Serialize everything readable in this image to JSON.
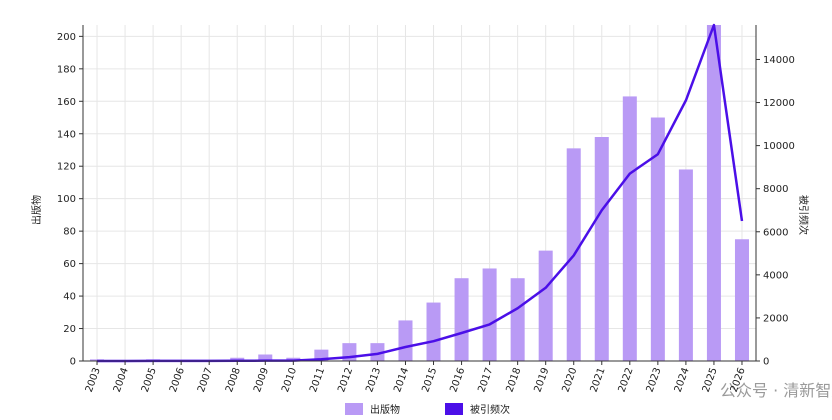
{
  "chart_data": {
    "type": "bar_line",
    "categories": [
      "2003",
      "2004",
      "2005",
      "2006",
      "2007",
      "2008",
      "2009",
      "2010",
      "2011",
      "2012",
      "2013",
      "2014",
      "2015",
      "2016",
      "2017",
      "2018",
      "2019",
      "2020",
      "2021",
      "2022",
      "2023",
      "2024",
      "2025",
      "2026"
    ],
    "series": [
      {
        "name": "出版物",
        "color": "#b99af5",
        "type": "bar",
        "values": [
          1,
          0,
          1,
          0,
          0,
          2,
          4,
          2,
          7,
          11,
          11,
          25,
          36,
          51,
          57,
          51,
          68,
          131,
          138,
          163,
          150,
          118,
          207,
          75
        ]
      },
      {
        "name": "被引频次",
        "color": "#4b0fe8",
        "type": "line",
        "axis": "y2",
        "values": [
          0,
          0,
          5,
          5,
          5,
          10,
          15,
          20,
          80,
          180,
          330,
          650,
          920,
          1300,
          1700,
          2450,
          3400,
          4900,
          7000,
          8700,
          9600,
          12100,
          15600,
          6500
        ]
      }
    ],
    "ylabel": "出版物",
    "y2label": "被引频次",
    "ylim": [
      0,
      207
    ],
    "yticks": [
      0,
      20,
      40,
      60,
      80,
      100,
      120,
      140,
      160,
      180,
      200
    ],
    "y2lim": [
      0,
      15600
    ],
    "y2ticks": [
      0,
      2000,
      4000,
      6000,
      8000,
      10000,
      12000,
      14000
    ],
    "grid": true,
    "legend": "bottom",
    "watermark": "公众号 · 清新智媒"
  }
}
